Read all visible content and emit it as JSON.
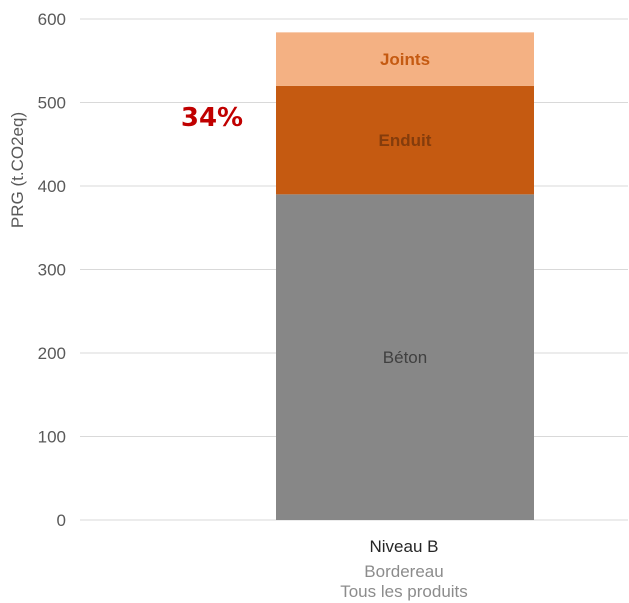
{
  "chart_data": {
    "type": "bar",
    "stacked": true,
    "ylabel": "PRG (t.CO2eq)",
    "ylim": [
      0,
      600
    ],
    "yticks": [
      0,
      100,
      200,
      300,
      400,
      500,
      600
    ],
    "grid": true,
    "categories": [
      "Niveau B"
    ],
    "category_sublabels": [
      "Bordereau",
      "Tous les produits"
    ],
    "series": [
      {
        "name": "Béton",
        "values": [
          390
        ],
        "color": "#878787",
        "label_color": "#404040",
        "label_bold": false
      },
      {
        "name": "Enduit",
        "values": [
          130
        ],
        "color": "#c55a11",
        "label_color": "#843c0c",
        "label_bold": true
      },
      {
        "name": "Joints",
        "values": [
          64
        ],
        "color": "#f4b183",
        "label_color": "#c55a11",
        "label_bold": true
      }
    ],
    "annotations": [
      {
        "text": "34%",
        "color": "#c00000"
      }
    ]
  }
}
